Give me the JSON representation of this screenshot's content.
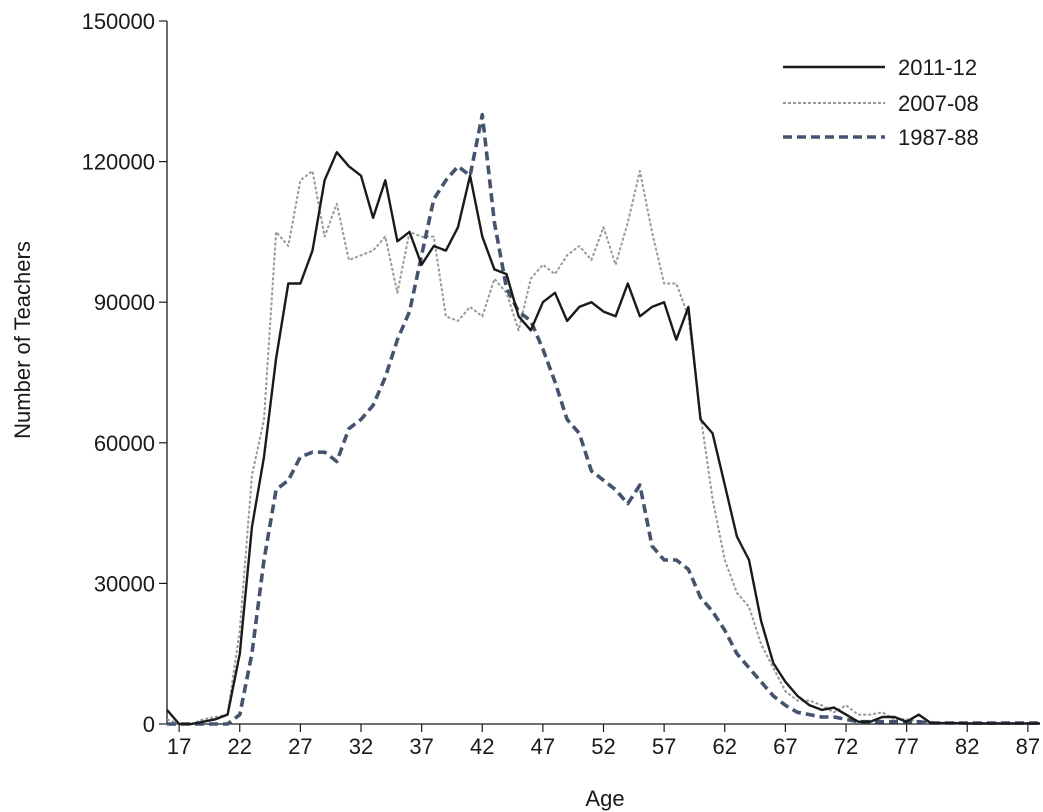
{
  "chart_data": {
    "type": "line",
    "title": "",
    "xlabel": "Age",
    "ylabel": "Number of Teachers",
    "xlim": [
      16,
      88
    ],
    "ylim": [
      0,
      150000
    ],
    "x_ticks": [
      17,
      22,
      27,
      32,
      37,
      42,
      47,
      52,
      57,
      62,
      67,
      72,
      77,
      82,
      87
    ],
    "y_ticks": [
      0,
      30000,
      60000,
      90000,
      120000,
      150000
    ],
    "grid": false,
    "legend_position": "top-right",
    "x": [
      16,
      17,
      18,
      19,
      20,
      21,
      22,
      23,
      24,
      25,
      26,
      27,
      28,
      29,
      30,
      31,
      32,
      33,
      34,
      35,
      36,
      37,
      38,
      39,
      40,
      41,
      42,
      43,
      44,
      45,
      46,
      47,
      48,
      49,
      50,
      51,
      52,
      53,
      54,
      55,
      56,
      57,
      58,
      59,
      60,
      61,
      62,
      63,
      64,
      65,
      66,
      67,
      68,
      69,
      70,
      71,
      72,
      73,
      74,
      75,
      76,
      77,
      78,
      79,
      80,
      81,
      82,
      83,
      84,
      85,
      86,
      87,
      88
    ],
    "series": [
      {
        "name": "2011-12",
        "color": "#1a1a1a",
        "style": "solid",
        "values": [
          3000,
          0,
          0,
          500,
          1000,
          2000,
          15000,
          42000,
          57000,
          78000,
          94000,
          94000,
          101000,
          116000,
          122000,
          119000,
          117000,
          108000,
          116000,
          103000,
          105000,
          98000,
          102000,
          101000,
          106000,
          117000,
          104000,
          97000,
          96000,
          87000,
          84000,
          90000,
          92000,
          86000,
          89000,
          90000,
          88000,
          87000,
          94000,
          87000,
          89000,
          90000,
          82000,
          89000,
          65000,
          62000,
          51000,
          40000,
          35000,
          22000,
          13000,
          9000,
          6000,
          4000,
          3000,
          3500,
          2000,
          500,
          500,
          1500,
          1500,
          500,
          2000,
          200,
          200,
          200,
          100,
          100,
          100,
          100,
          100,
          100,
          100
        ]
      },
      {
        "name": "2007-08",
        "color": "#999999",
        "style": "dotted",
        "values": [
          1000,
          0,
          0,
          1000,
          1500,
          2000,
          20000,
          53000,
          65000,
          105000,
          102000,
          116000,
          118000,
          104000,
          111000,
          99000,
          100000,
          101000,
          104000,
          92000,
          105000,
          104000,
          104000,
          87000,
          86000,
          89000,
          87000,
          95000,
          92000,
          84000,
          95000,
          98000,
          96000,
          100000,
          102000,
          99000,
          106000,
          98000,
          107000,
          118000,
          105000,
          94000,
          94000,
          87000,
          66000,
          48000,
          35000,
          28000,
          25000,
          17000,
          12000,
          7000,
          5000,
          5000,
          4000,
          2500,
          4000,
          2000,
          2000,
          2500,
          1000,
          1000,
          500,
          500,
          200,
          200,
          200,
          200,
          200,
          200,
          200,
          200,
          200
        ]
      },
      {
        "name": "1987-88",
        "color": "#44536e",
        "style": "dashed",
        "values": [
          0,
          0,
          0,
          0,
          0,
          0,
          2000,
          15000,
          35000,
          50000,
          52000,
          57000,
          58000,
          58000,
          56000,
          63000,
          65000,
          68000,
          74000,
          82000,
          88000,
          100000,
          112000,
          116000,
          119000,
          117000,
          130000,
          107000,
          93000,
          88000,
          86000,
          80000,
          73000,
          65000,
          62000,
          54000,
          52000,
          50000,
          47000,
          51000,
          38000,
          35000,
          35000,
          33000,
          27000,
          24000,
          20000,
          15000,
          12000,
          9000,
          6000,
          4000,
          2500,
          2000,
          1500,
          1500,
          1000,
          500,
          500,
          500,
          500,
          500,
          500,
          200,
          200,
          200,
          200,
          200,
          200,
          200,
          200,
          200,
          200
        ]
      }
    ]
  }
}
